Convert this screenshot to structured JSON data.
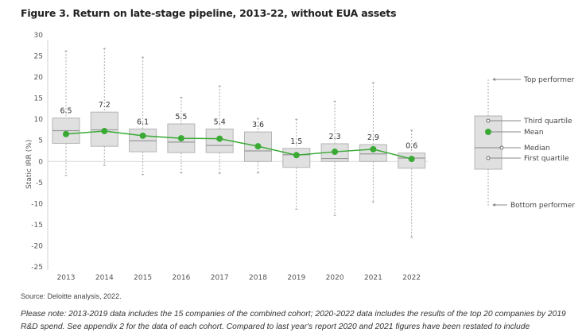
{
  "header": {
    "title": "Figure 3. Return on late-stage pipeline, 2013-22, without EUA assets"
  },
  "footer": {
    "source": "Source: Deloitte analysis, 2022.",
    "note": "Please note: 2013-2019 data includes the 15 companies of the combined cohort; 2020-2022 data includes the results of the top 20 companies by 2019 R&D spend. See appendix 2 for the data of each cohort. Compared to last year's report 2020 and 2021 figures have been restated to include"
  },
  "colors": {
    "mean": "#3aaa35",
    "box_fill": "#e0e0e0",
    "box_stroke": "#b5b5b5",
    "median": "#999999",
    "whisker": "#aaaaaa"
  },
  "chart_data": {
    "type": "box",
    "title": "Figure 3. Return on late-stage pipeline, 2013-22, without EUA assets",
    "xlabel": "",
    "ylabel": "Static IRR (%)",
    "ylim": [
      -25,
      30
    ],
    "yticks": [
      30,
      25,
      20,
      15,
      10,
      5,
      0,
      -5,
      -10,
      -15,
      -20,
      -25
    ],
    "categories": [
      "2013",
      "2014",
      "2015",
      "2016",
      "2017",
      "2018",
      "2019",
      "2020",
      "2021",
      "2022"
    ],
    "series": [
      {
        "name": "Top performer",
        "values": [
          26.2,
          26.8,
          24.7,
          15.2,
          17.9,
          10.2,
          10.0,
          14.3,
          18.7,
          7.4
        ]
      },
      {
        "name": "Third quartile",
        "values": [
          10.3,
          11.7,
          7.7,
          8.9,
          7.7,
          7.0,
          3.1,
          4.2,
          4.0,
          2.0
        ]
      },
      {
        "name": "Median",
        "values": [
          7.3,
          7.5,
          4.9,
          4.6,
          3.8,
          2.5,
          1.6,
          0.7,
          1.8,
          0.8
        ]
      },
      {
        "name": "First quartile",
        "values": [
          4.3,
          3.6,
          2.3,
          2.1,
          2.1,
          0.0,
          -1.4,
          0.0,
          0.0,
          -1.6
        ]
      },
      {
        "name": "Bottom performer",
        "values": [
          -3.3,
          -0.9,
          -3.1,
          -2.7,
          -2.8,
          -2.7,
          -11.3,
          -12.8,
          -9.6,
          -18.0
        ]
      },
      {
        "name": "Mean",
        "values": [
          6.5,
          7.2,
          6.1,
          5.5,
          5.4,
          3.6,
          1.5,
          2.3,
          2.9,
          0.6
        ]
      }
    ],
    "data_labels": [
      "6.5",
      "7.2",
      "6.1",
      "5.5",
      "5.4",
      "3.6",
      "1.5",
      "2.3",
      "2.9",
      "0.6"
    ],
    "grid": false,
    "legend": {
      "placement": "right",
      "entries": [
        "Top performer",
        "Third quartile",
        "Mean",
        "Median",
        "First quartile",
        "Bottom performer"
      ]
    }
  }
}
